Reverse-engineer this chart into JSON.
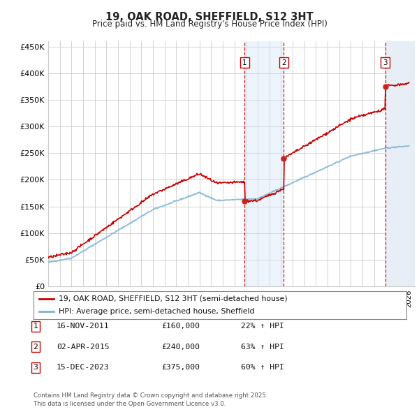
{
  "title": "19, OAK ROAD, SHEFFIELD, S12 3HT",
  "subtitle": "Price paid vs. HM Land Registry's House Price Index (HPI)",
  "ylim": [
    0,
    460000
  ],
  "yticks": [
    0,
    50000,
    100000,
    150000,
    200000,
    250000,
    300000,
    350000,
    400000,
    450000
  ],
  "ytick_labels": [
    "£0",
    "£50K",
    "£100K",
    "£150K",
    "£200K",
    "£250K",
    "£300K",
    "£350K",
    "£400K",
    "£450K"
  ],
  "xlim_start": 1995.0,
  "xlim_end": 2026.5,
  "background_color": "#ffffff",
  "grid_color": "#cccccc",
  "sale_events": [
    {
      "label": "1",
      "date": "16-NOV-2011",
      "price": 160000,
      "pct": "22%",
      "year": 2011.88
    },
    {
      "label": "2",
      "date": "02-APR-2015",
      "price": 240000,
      "pct": "63%",
      "year": 2015.25
    },
    {
      "label": "3",
      "date": "15-DEC-2023",
      "price": 375000,
      "pct": "60%",
      "year": 2023.96
    }
  ],
  "sale_box_color": "#cc0000",
  "dashed_line_color": "#cc0000",
  "shade_color": "#cce0f5",
  "legend_line1_color": "#cc0000",
  "legend_line2_color": "#7bb3d4",
  "footer_text": "Contains HM Land Registry data © Crown copyright and database right 2025.\nThis data is licensed under the Open Government Licence v3.0.",
  "legend_label1": "19, OAK ROAD, SHEFFIELD, S12 3HT (semi-detached house)",
  "legend_label2": "HPI: Average price, semi-detached house, Sheffield"
}
